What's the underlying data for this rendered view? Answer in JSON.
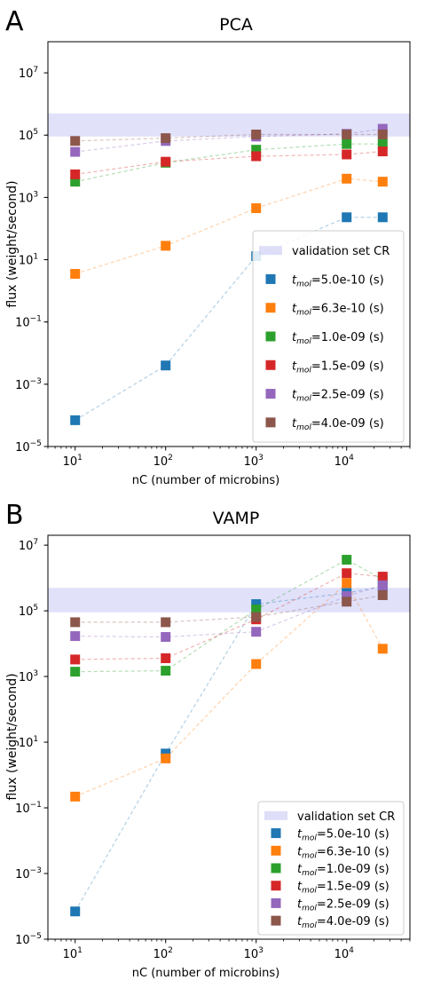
{
  "panels": [
    {
      "letter": "A",
      "chart_data": {
        "type": "scatter",
        "title": "PCA",
        "xlabel": "nC (number of microbins)",
        "ylabel": "flux (weight/second)",
        "x_scale": "log",
        "y_scale": "log",
        "xlim": [
          5,
          50000
        ],
        "ylim": [
          1e-05,
          100000000.0
        ],
        "x_ticks": [
          10,
          100,
          1000,
          10000
        ],
        "x_tick_labels": [
          {
            "base": "10",
            "exp": "1"
          },
          {
            "base": "10",
            "exp": "2"
          },
          {
            "base": "10",
            "exp": "3"
          },
          {
            "base": "10",
            "exp": "4"
          }
        ],
        "y_ticks": [
          1e-05,
          0.001,
          0.1,
          10,
          1000,
          100000,
          10000000
        ],
        "y_tick_labels": [
          {
            "base": "10",
            "exp": "−5"
          },
          {
            "base": "10",
            "exp": "−3"
          },
          {
            "base": "10",
            "exp": "−1"
          },
          {
            "base": "10",
            "exp": "1"
          },
          {
            "base": "10",
            "exp": "3"
          },
          {
            "base": "10",
            "exp": "5"
          },
          {
            "base": "10",
            "exp": "7"
          }
        ],
        "band": {
          "label": "validation set CR",
          "y0": 90000,
          "y1": 500000,
          "color": "#c8c8f5"
        },
        "legend_position": "lower right",
        "x": [
          10,
          100,
          1000,
          10000,
          25000
        ],
        "series": [
          {
            "sym": "t",
            "sub": "mol",
            "suffix": "=5.0e-10 (s)",
            "color": "#1f77b4",
            "values": [
              7e-05,
              0.004,
              13,
              230,
              230
            ]
          },
          {
            "sym": "t",
            "sub": "mol",
            "suffix": "=6.3e-10 (s)",
            "color": "#ff7f0e",
            "values": [
              3.5,
              28,
              450,
              4000,
              3200
            ]
          },
          {
            "sym": "t",
            "sub": "mol",
            "suffix": "=1.0e-09 (s)",
            "color": "#2ca02c",
            "values": [
              3200,
              13000,
              34000,
              52000,
              52000
            ]
          },
          {
            "sym": "t",
            "sub": "mol",
            "suffix": "=1.5e-09 (s)",
            "color": "#d62728",
            "values": [
              5500,
              14000,
              21000,
              24000,
              30000
            ]
          },
          {
            "sym": "t",
            "sub": "mol",
            "suffix": "=2.5e-09 (s)",
            "color": "#9467bd",
            "values": [
              29000,
              65000,
              90000,
              110000,
              160000
            ]
          },
          {
            "sym": "t",
            "sub": "mol",
            "suffix": "=4.0e-09 (s)",
            "color": "#8c564b",
            "values": [
              65000,
              80000,
              105000,
              105000,
              105000
            ]
          }
        ]
      }
    },
    {
      "letter": "B",
      "chart_data": {
        "type": "scatter",
        "title": "VAMP",
        "xlabel": "nC (number of microbins)",
        "ylabel": "flux (weight/second)",
        "x_scale": "log",
        "y_scale": "log",
        "xlim": [
          5,
          50000
        ],
        "ylim": [
          1e-05,
          20000000.0
        ],
        "x_ticks": [
          10,
          100,
          1000,
          10000
        ],
        "x_tick_labels": [
          {
            "base": "10",
            "exp": "1"
          },
          {
            "base": "10",
            "exp": "2"
          },
          {
            "base": "10",
            "exp": "3"
          },
          {
            "base": "10",
            "exp": "4"
          }
        ],
        "y_ticks": [
          1e-05,
          0.001,
          0.1,
          10,
          1000,
          100000,
          10000000
        ],
        "y_tick_labels": [
          {
            "base": "10",
            "exp": "−5"
          },
          {
            "base": "10",
            "exp": "−3"
          },
          {
            "base": "10",
            "exp": "−1"
          },
          {
            "base": "10",
            "exp": "1"
          },
          {
            "base": "10",
            "exp": "3"
          },
          {
            "base": "10",
            "exp": "5"
          },
          {
            "base": "10",
            "exp": "7"
          }
        ],
        "band": {
          "label": "validation set CR",
          "y0": 90000,
          "y1": 500000,
          "color": "#c8c8f5"
        },
        "legend_position": "lower right",
        "x": [
          10,
          100,
          1000,
          10000,
          25000
        ],
        "series": [
          {
            "sym": "t",
            "sub": "mol",
            "suffix": "=5.0e-10 (s)",
            "color": "#1f77b4",
            "values": [
              7e-05,
              4.5,
              160000,
              350000,
              550000
            ]
          },
          {
            "sym": "t",
            "sub": "mol",
            "suffix": "=6.3e-10 (s)",
            "color": "#ff7f0e",
            "values": [
              0.22,
              3.2,
              2400,
              700000,
              7000
            ]
          },
          {
            "sym": "t",
            "sub": "mol",
            "suffix": "=1.0e-09 (s)",
            "color": "#2ca02c",
            "values": [
              1400,
              1500,
              110000,
              3600000,
              900000
            ]
          },
          {
            "sym": "t",
            "sub": "mol",
            "suffix": "=1.5e-09 (s)",
            "color": "#d62728",
            "values": [
              3300,
              3600,
              55000,
              1400000,
              1100000
            ]
          },
          {
            "sym": "t",
            "sub": "mol",
            "suffix": "=2.5e-09 (s)",
            "color": "#9467bd",
            "values": [
              17000,
              16000,
              23000,
              280000,
              600000
            ]
          },
          {
            "sym": "t",
            "sub": "mol",
            "suffix": "=4.0e-09 (s)",
            "color": "#8c564b",
            "values": [
              45000,
              45000,
              65000,
              190000,
              300000
            ]
          }
        ]
      }
    }
  ]
}
